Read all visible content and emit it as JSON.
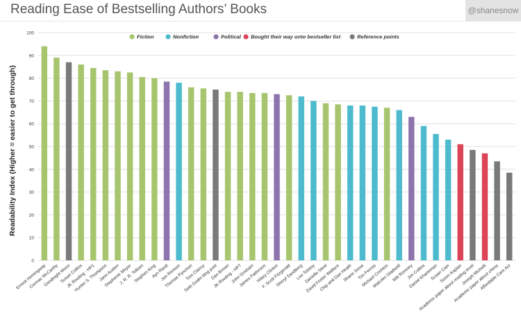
{
  "header": {
    "title": "Reading Ease of Bestselling Authors’ Books",
    "handle": "@shanesnow"
  },
  "chart_data": {
    "type": "bar",
    "title": "Reading Ease of Bestselling Authors’ Books",
    "ylabel": "Readability Index (Higher = easier to get through)",
    "xlabel": "",
    "ylim": [
      0,
      100
    ],
    "yticks": [
      0,
      10,
      20,
      30,
      40,
      50,
      60,
      70,
      80,
      90,
      100
    ],
    "grid": true,
    "legend_placement": "top",
    "legend": [
      {
        "name": "Fiction",
        "color": "#a7c56e"
      },
      {
        "name": "Nonfiction",
        "color": "#4dbbcd"
      },
      {
        "name": "Political",
        "color": "#8e74ad"
      },
      {
        "name": "Bought their way onto bestseller list",
        "color": "#dc4458"
      },
      {
        "name": "Reference points",
        "color": "#7a7a7a"
      }
    ],
    "categories": [
      "Ernest Hemingway",
      "Cormac McCarthy",
      "Goodnight Moon",
      "Susan Collins",
      "JK Rowling - HP1",
      "Hunter S. Thompson",
      "Jane Austen",
      "Stephenie Meyer",
      "J. R. R. Tolkien",
      "Stephen King",
      "Ayn Rand",
      "Jon Ronson",
      "Thomas Pynchon",
      "Tom Clancy",
      "Seth Godin blog post",
      "Dan Brown",
      "JK Rowling - HP7",
      "John Grisham",
      "James Patterson",
      "Hilary Clinton",
      "F. Scott Fitzgerald",
      "Sheryl Sandberg",
      "Leo Tolstoy",
      "Danielle Steel",
      "David Foster Wallace",
      "Chip and Dan Heath",
      "Shane Snow",
      "Tim Ferriss",
      "Michael Crichton",
      "Malcolm Gladwell",
      "Mitt Romney",
      "Jim Collins",
      "Daniel Khaneman",
      "Susan Cain",
      "Soren Kaplan",
      "Academic paper about reading level",
      "Joseph Michelli",
      "Academic paper about chess",
      "Affordable Care Act"
    ],
    "values": [
      94,
      89,
      87,
      86,
      84.5,
      83.5,
      83,
      82.5,
      80.5,
      80,
      78.5,
      78,
      76,
      75.5,
      75,
      74,
      74,
      73.5,
      73.5,
      73,
      72.5,
      72,
      70,
      69,
      68.5,
      68,
      68,
      67.5,
      67,
      66,
      63,
      59,
      55.5,
      53,
      51,
      48.5,
      47,
      43.5,
      38.5
    ],
    "groups": [
      "Fiction",
      "Fiction",
      "Reference points",
      "Fiction",
      "Fiction",
      "Fiction",
      "Fiction",
      "Fiction",
      "Fiction",
      "Fiction",
      "Political",
      "Nonfiction",
      "Fiction",
      "Fiction",
      "Reference points",
      "Fiction",
      "Fiction",
      "Fiction",
      "Fiction",
      "Political",
      "Fiction",
      "Nonfiction",
      "Nonfiction",
      "Fiction",
      "Fiction",
      "Nonfiction",
      "Nonfiction",
      "Nonfiction",
      "Fiction",
      "Nonfiction",
      "Political",
      "Nonfiction",
      "Nonfiction",
      "Nonfiction",
      "Bought their way onto bestseller list",
      "Reference points",
      "Bought their way onto bestseller list",
      "Reference points",
      "Reference points"
    ]
  }
}
